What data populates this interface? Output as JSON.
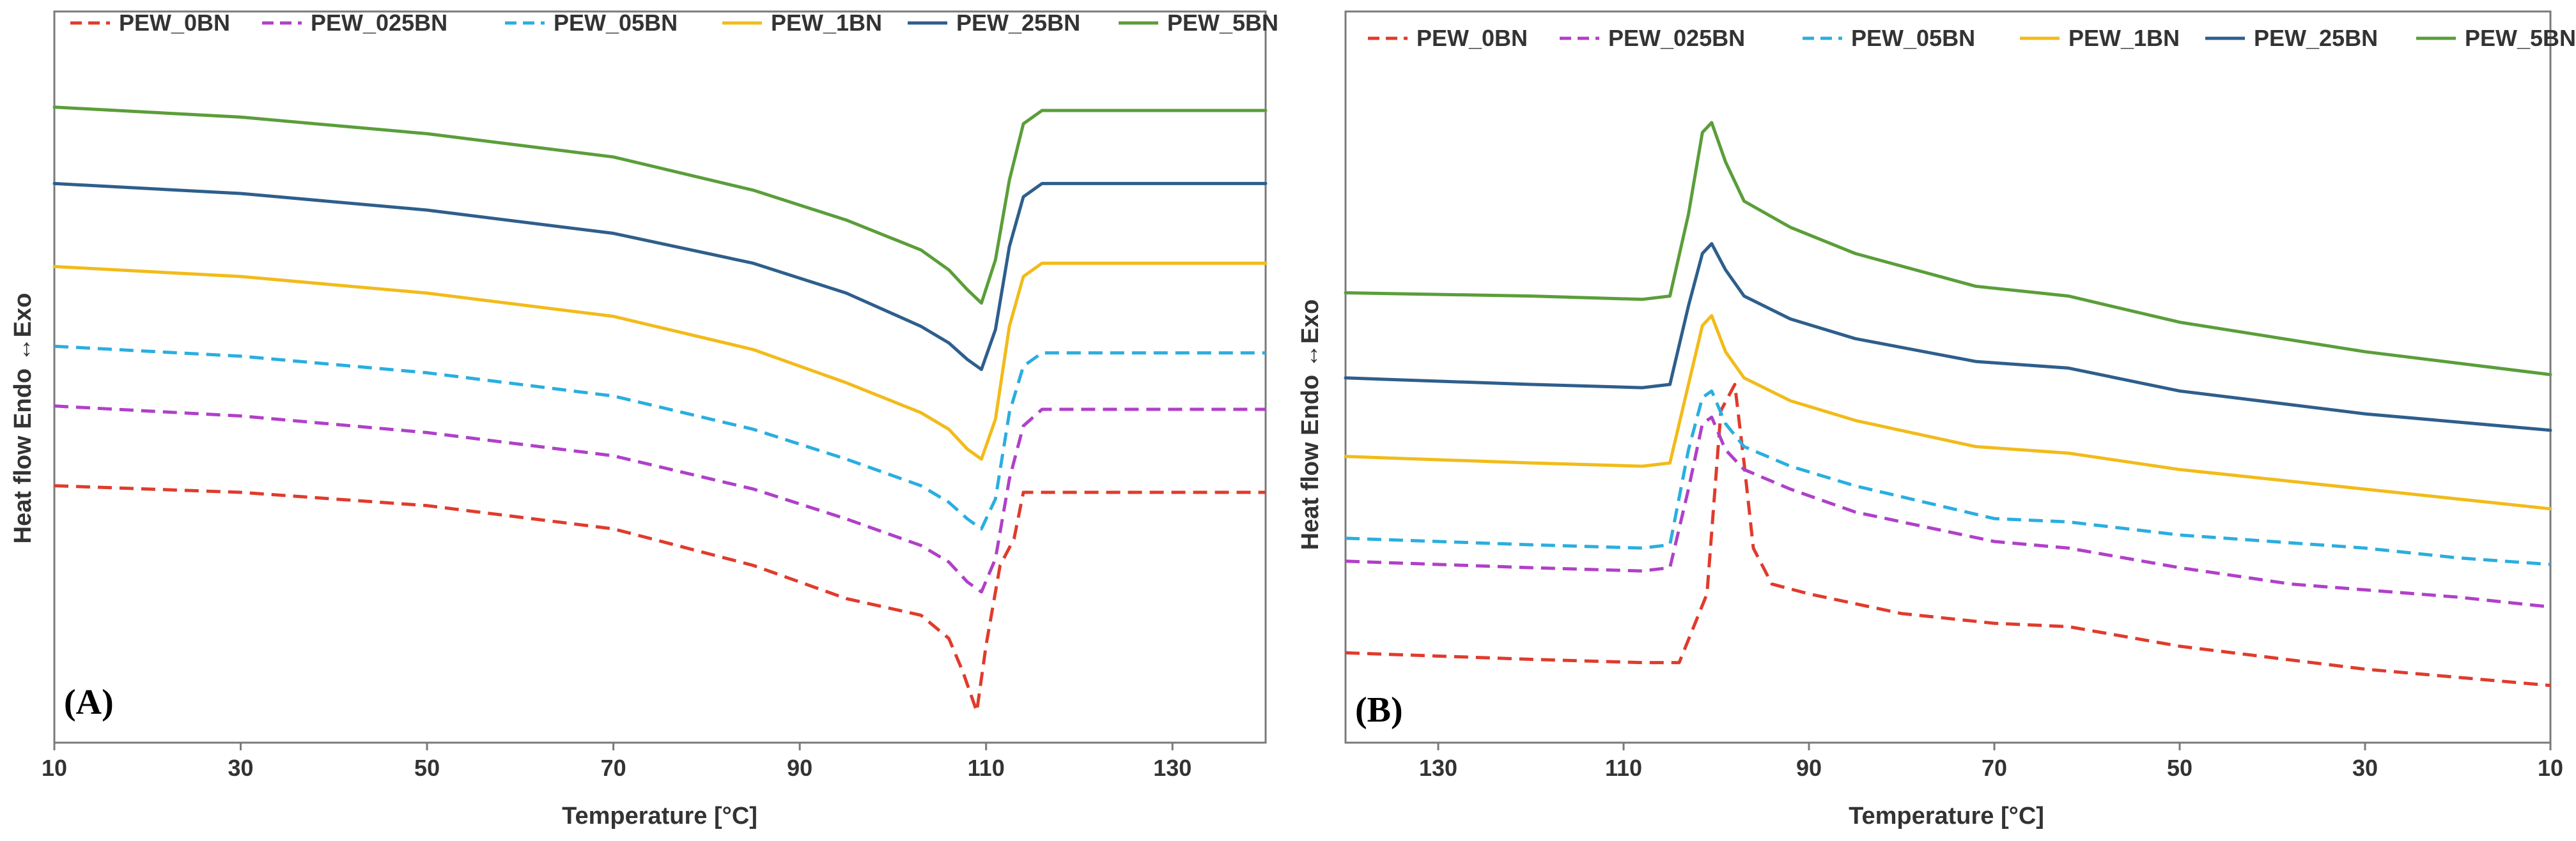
{
  "chart_data": [
    {
      "type": "line",
      "panel_label": "(A)",
      "xlabel": "Temperature [°C]",
      "ylabel": "Heat flow Endo ↔Exo",
      "xlim": [
        10,
        140
      ],
      "x_ticks": [
        10,
        30,
        50,
        70,
        90,
        110,
        130
      ],
      "x_reversed": false,
      "ylim": [
        0,
        100
      ],
      "y_units": "relative (no y-axis scale shown)",
      "legend": "top",
      "grid": false,
      "series": [
        {
          "name": "PEW_0BN",
          "color": "#e03b2c",
          "dash": "dashed",
          "points": [
            [
              10,
              36
            ],
            [
              30,
              35
            ],
            [
              50,
              33
            ],
            [
              70,
              29.5
            ],
            [
              85,
              24
            ],
            [
              95,
              19
            ],
            [
              103,
              16.5
            ],
            [
              106,
              13
            ],
            [
              107.5,
              8
            ],
            [
              109,
              2
            ],
            [
              110,
              12
            ],
            [
              111.5,
              24
            ],
            [
              113,
              28
            ],
            [
              114,
              35
            ],
            [
              140,
              35
            ]
          ]
        },
        {
          "name": "PEW_025BN",
          "color": "#b040c8",
          "dash": "dashed",
          "points": [
            [
              10,
              48
            ],
            [
              30,
              46.5
            ],
            [
              50,
              44
            ],
            [
              70,
              40.5
            ],
            [
              85,
              35.5
            ],
            [
              95,
              31
            ],
            [
              103,
              27
            ],
            [
              106,
              24.5
            ],
            [
              108,
              21.5
            ],
            [
              109.5,
              20
            ],
            [
              111,
              25
            ],
            [
              112.5,
              37
            ],
            [
              114,
              45
            ],
            [
              116,
              47.5
            ],
            [
              140,
              47.5
            ]
          ]
        },
        {
          "name": "PEW_05BN",
          "color": "#2aaee0",
          "dash": "dashed",
          "points": [
            [
              10,
              57
            ],
            [
              30,
              55.5
            ],
            [
              50,
              53
            ],
            [
              70,
              49.5
            ],
            [
              85,
              44.5
            ],
            [
              95,
              40
            ],
            [
              103,
              36
            ],
            [
              106,
              33.5
            ],
            [
              108,
              31
            ],
            [
              109.5,
              29.5
            ],
            [
              111,
              34
            ],
            [
              112.5,
              47
            ],
            [
              114,
              54
            ],
            [
              116,
              56
            ],
            [
              140,
              56
            ]
          ]
        },
        {
          "name": "PEW_1BN",
          "color": "#f2bb1a",
          "dash": "solid",
          "points": [
            [
              10,
              69
            ],
            [
              30,
              67.5
            ],
            [
              50,
              65
            ],
            [
              70,
              61.5
            ],
            [
              85,
              56.5
            ],
            [
              95,
              51.5
            ],
            [
              103,
              47
            ],
            [
              106,
              44.5
            ],
            [
              108,
              41.5
            ],
            [
              109.5,
              40
            ],
            [
              111,
              46
            ],
            [
              112.5,
              60
            ],
            [
              114,
              67.5
            ],
            [
              116,
              69.5
            ],
            [
              140,
              69.5
            ]
          ]
        },
        {
          "name": "PEW_25BN",
          "color": "#2e5e8c",
          "dash": "solid",
          "points": [
            [
              10,
              81.5
            ],
            [
              30,
              80
            ],
            [
              50,
              77.5
            ],
            [
              70,
              74
            ],
            [
              85,
              69.5
            ],
            [
              95,
              65
            ],
            [
              103,
              60
            ],
            [
              106,
              57.5
            ],
            [
              108,
              55
            ],
            [
              109.5,
              53.5
            ],
            [
              111,
              59.5
            ],
            [
              112.5,
              72
            ],
            [
              114,
              79.5
            ],
            [
              116,
              81.5
            ],
            [
              140,
              81.5
            ]
          ]
        },
        {
          "name": "PEW_5BN",
          "color": "#5a9e3a",
          "dash": "solid",
          "points": [
            [
              10,
              93
            ],
            [
              30,
              91.5
            ],
            [
              50,
              89
            ],
            [
              70,
              85.5
            ],
            [
              85,
              80.5
            ],
            [
              95,
              76
            ],
            [
              103,
              71.5
            ],
            [
              106,
              68.5
            ],
            [
              108,
              65.5
            ],
            [
              109.5,
              63.5
            ],
            [
              111,
              70
            ],
            [
              112.5,
              82
            ],
            [
              114,
              90.5
            ],
            [
              116,
              92.5
            ],
            [
              140,
              92.5
            ]
          ]
        }
      ]
    },
    {
      "type": "line",
      "panel_label": "(B)",
      "xlabel": "Temperature [°C]",
      "ylabel": "Heat flow Endo ↔Exo",
      "xlim": [
        140,
        10
      ],
      "x_ticks": [
        130,
        110,
        90,
        70,
        50,
        30,
        10
      ],
      "x_reversed": true,
      "ylim": [
        0,
        100
      ],
      "y_units": "relative (no y-axis scale shown)",
      "legend": "top",
      "grid": false,
      "series": [
        {
          "name": "PEW_0BN",
          "color": "#e03b2c",
          "dash": "dashed",
          "points": [
            [
              140,
              11
            ],
            [
              120,
              10
            ],
            [
              108,
              9.5
            ],
            [
              104,
              9.5
            ],
            [
              101,
              20
            ],
            [
              99.5,
              48
            ],
            [
              98,
              52
            ],
            [
              97,
              40
            ],
            [
              96,
              27
            ],
            [
              94,
              21.5
            ],
            [
              90,
              20
            ],
            [
              80,
              17
            ],
            [
              70,
              15.5
            ],
            [
              62,
              15
            ],
            [
              50,
              12
            ],
            [
              30,
              8.5
            ],
            [
              10,
              6
            ]
          ]
        },
        {
          "name": "PEW_025BN",
          "color": "#b040c8",
          "dash": "dashed",
          "points": [
            [
              140,
              25
            ],
            [
              120,
              24
            ],
            [
              108,
              23.5
            ],
            [
              105,
              24
            ],
            [
              103,
              36
            ],
            [
              101.5,
              46
            ],
            [
              100.5,
              47
            ],
            [
              99,
              42
            ],
            [
              97,
              39
            ],
            [
              92,
              36
            ],
            [
              85,
              32.5
            ],
            [
              70,
              28
            ],
            [
              62,
              27
            ],
            [
              50,
              24
            ],
            [
              38,
              21.5
            ],
            [
              20,
              19.5
            ],
            [
              10,
              18
            ]
          ]
        },
        {
          "name": "PEW_05BN",
          "color": "#2aaee0",
          "dash": "dashed",
          "points": [
            [
              140,
              28.5
            ],
            [
              120,
              27.5
            ],
            [
              108,
              27
            ],
            [
              105,
              27.5
            ],
            [
              103,
              42
            ],
            [
              101.5,
              50
            ],
            [
              100.5,
              51
            ],
            [
              99,
              46
            ],
            [
              97,
              42.5
            ],
            [
              92,
              39.5
            ],
            [
              85,
              36.5
            ],
            [
              70,
              31.5
            ],
            [
              62,
              31
            ],
            [
              50,
              29
            ],
            [
              30,
              27
            ],
            [
              20,
              25.5
            ],
            [
              10,
              24.5
            ]
          ]
        },
        {
          "name": "PEW_1BN",
          "color": "#f2bb1a",
          "dash": "solid",
          "points": [
            [
              140,
              41
            ],
            [
              120,
              40
            ],
            [
              108,
              39.5
            ],
            [
              105,
              40
            ],
            [
              103,
              52
            ],
            [
              101.5,
              61
            ],
            [
              100.5,
              62.5
            ],
            [
              99,
              57
            ],
            [
              97,
              53
            ],
            [
              92,
              49.5
            ],
            [
              85,
              46.5
            ],
            [
              72,
              42.5
            ],
            [
              62,
              41.5
            ],
            [
              50,
              39
            ],
            [
              30,
              36
            ],
            [
              10,
              33
            ]
          ]
        },
        {
          "name": "PEW_25BN",
          "color": "#2e5e8c",
          "dash": "solid",
          "points": [
            [
              140,
              53
            ],
            [
              120,
              52
            ],
            [
              108,
              51.5
            ],
            [
              105,
              52
            ],
            [
              103,
              64
            ],
            [
              101.5,
              72
            ],
            [
              100.5,
              73.5
            ],
            [
              99,
              69.5
            ],
            [
              97,
              65.5
            ],
            [
              92,
              62
            ],
            [
              85,
              59
            ],
            [
              72,
              55.5
            ],
            [
              62,
              54.5
            ],
            [
              50,
              51
            ],
            [
              30,
              47.5
            ],
            [
              10,
              45
            ]
          ]
        },
        {
          "name": "PEW_5BN",
          "color": "#5a9e3a",
          "dash": "solid",
          "points": [
            [
              140,
              66
            ],
            [
              120,
              65.5
            ],
            [
              108,
              65
            ],
            [
              105,
              65.5
            ],
            [
              103,
              78
            ],
            [
              101.5,
              90.5
            ],
            [
              100.5,
              92
            ],
            [
              99,
              86
            ],
            [
              97,
              80
            ],
            [
              92,
              76
            ],
            [
              85,
              72
            ],
            [
              72,
              67
            ],
            [
              62,
              65.5
            ],
            [
              50,
              61.5
            ],
            [
              30,
              57
            ],
            [
              10,
              53.5
            ]
          ]
        }
      ]
    }
  ]
}
